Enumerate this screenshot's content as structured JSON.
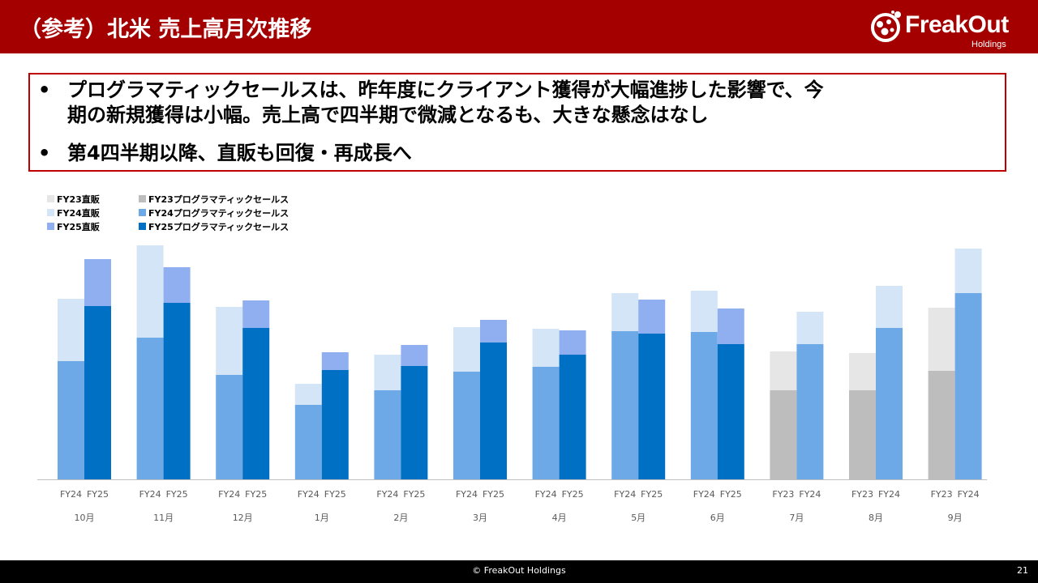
{
  "header": {
    "title": "（参考）北米 売上高月次推移",
    "logo_text": "FreakOut",
    "logo_sub": "Holdings"
  },
  "bullets": [
    {
      "marker": "•",
      "line1": "プログラマティックセールスは、昨年度にクライアント獲得が大幅進捗した影響で、今",
      "line2": "期の新規獲得は小幅。売上高で四半期で微減となるも、大きな懸念はなし"
    },
    {
      "marker": "•",
      "line1": "第4四半期以降、直販も回復・再成長へ",
      "line2": ""
    }
  ],
  "legend": [
    {
      "label": "FY23直販",
      "color": "#e6e6e6"
    },
    {
      "label": "FY24直販",
      "color": "#d3e5f6"
    },
    {
      "label": "FY25直販",
      "color": "#8faff0"
    },
    {
      "label": "FY23プログラマティックセールス",
      "color": "#bdbdbd"
    },
    {
      "label": "FY24プログラマティックセールス",
      "color": "#6da9e6"
    },
    {
      "label": "FY25プログラマティックセールス",
      "color": "#0070c4"
    }
  ],
  "colors": {
    "FY23直販": "#e6e6e6",
    "FY23プログラマティックセールス": "#bdbdbd",
    "FY24直販": "#d3e5f6",
    "FY24プログラマティックセールス": "#6da9e6",
    "FY25直販": "#8faff0",
    "FY25プログラマティックセールス": "#0070c4",
    "header": "#a50000",
    "box_border": "#c00000"
  },
  "chart_data": {
    "type": "bar",
    "stacked": true,
    "ylim": [
      0,
      300
    ],
    "grid": false,
    "legend_position": "top-left",
    "categories": [
      "10月",
      "11月",
      "12月",
      "1月",
      "2月",
      "3月",
      "4月",
      "5月",
      "6月",
      "7月",
      "8月",
      "9月"
    ],
    "groups": [
      {
        "month": "10月",
        "bars": [
          {
            "fy": "FY24",
            "programmatic": 146,
            "direct": 77
          },
          {
            "fy": "FY25",
            "programmatic": 214,
            "direct": 58
          }
        ]
      },
      {
        "month": "11月",
        "bars": [
          {
            "fy": "FY24",
            "programmatic": 175,
            "direct": 114
          },
          {
            "fy": "FY25",
            "programmatic": 218,
            "direct": 44
          }
        ]
      },
      {
        "month": "12月",
        "bars": [
          {
            "fy": "FY24",
            "programmatic": 129,
            "direct": 84
          },
          {
            "fy": "FY25",
            "programmatic": 187,
            "direct": 34
          }
        ]
      },
      {
        "month": "1月",
        "bars": [
          {
            "fy": "FY24",
            "programmatic": 92,
            "direct": 26
          },
          {
            "fy": "FY25",
            "programmatic": 135,
            "direct": 22
          }
        ]
      },
      {
        "month": "2月",
        "bars": [
          {
            "fy": "FY24",
            "programmatic": 110,
            "direct": 44
          },
          {
            "fy": "FY25",
            "programmatic": 140,
            "direct": 26
          }
        ]
      },
      {
        "month": "3月",
        "bars": [
          {
            "fy": "FY24",
            "programmatic": 133,
            "direct": 55
          },
          {
            "fy": "FY25",
            "programmatic": 169,
            "direct": 28
          }
        ]
      },
      {
        "month": "4月",
        "bars": [
          {
            "fy": "FY24",
            "programmatic": 139,
            "direct": 47
          },
          {
            "fy": "FY25",
            "programmatic": 154,
            "direct": 30
          }
        ]
      },
      {
        "month": "5月",
        "bars": [
          {
            "fy": "FY24",
            "programmatic": 183,
            "direct": 47
          },
          {
            "fy": "FY25",
            "programmatic": 180,
            "direct": 42
          }
        ]
      },
      {
        "month": "6月",
        "bars": [
          {
            "fy": "FY24",
            "programmatic": 182,
            "direct": 51
          },
          {
            "fy": "FY25",
            "programmatic": 167,
            "direct": 44
          }
        ]
      },
      {
        "month": "7月",
        "bars": [
          {
            "fy": "FY23",
            "programmatic": 110,
            "direct": 48
          },
          {
            "fy": "FY24",
            "programmatic": 167,
            "direct": 40
          }
        ]
      },
      {
        "month": "8月",
        "bars": [
          {
            "fy": "FY23",
            "programmatic": 110,
            "direct": 46
          },
          {
            "fy": "FY24",
            "programmatic": 187,
            "direct": 52
          }
        ]
      },
      {
        "month": "9月",
        "bars": [
          {
            "fy": "FY23",
            "programmatic": 134,
            "direct": 78
          },
          {
            "fy": "FY24",
            "programmatic": 230,
            "direct": 55
          }
        ]
      }
    ]
  },
  "footer": {
    "copyright": "© FreakOut Holdings",
    "page": "21"
  }
}
